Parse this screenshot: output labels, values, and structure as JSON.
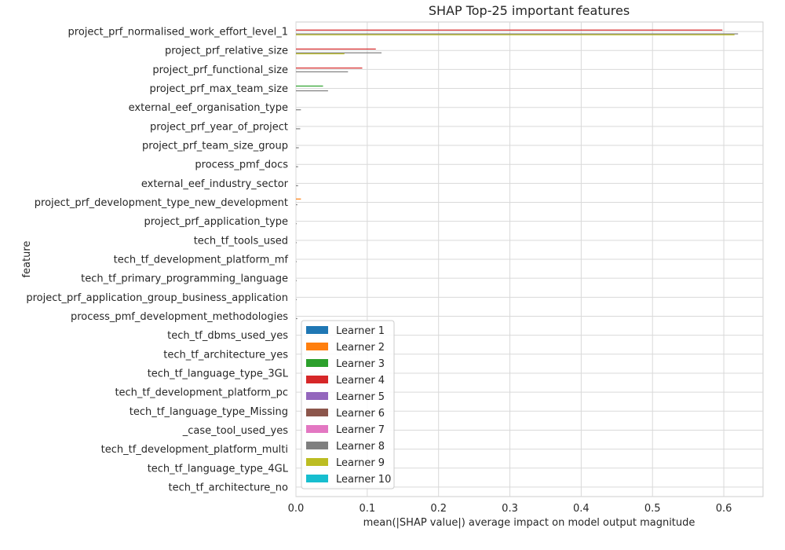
{
  "chart_data": {
    "type": "bar",
    "orientation": "horizontal",
    "title": "SHAP Top-25 important features",
    "xlabel": "mean(|SHAP value|) average impact on model output magnitude",
    "ylabel": "feature",
    "xlim": [
      0,
      0.655
    ],
    "xticks": [
      "0.0",
      "0.1",
      "0.2",
      "0.3",
      "0.4",
      "0.5",
      "0.6"
    ],
    "grid": true,
    "legend_position": "lower-left",
    "categories": [
      "project_prf_normalised_work_effort_level_1",
      "project_prf_relative_size",
      "project_prf_functional_size",
      "project_prf_max_team_size",
      "external_eef_organisation_type",
      "project_prf_year_of_project",
      "project_prf_team_size_group",
      "process_pmf_docs",
      "external_eef_industry_sector",
      "project_prf_development_type_new_development",
      "project_prf_application_type",
      "tech_tf_tools_used",
      "tech_tf_development_platform_mf",
      "tech_tf_primary_programming_language",
      "project_prf_application_group_business_application",
      "process_pmf_development_methodologies",
      "tech_tf_dbms_used_yes",
      "tech_tf_architecture_yes",
      "tech_tf_language_type_3GL",
      "tech_tf_development_platform_pc",
      "tech_tf_language_type_Missing",
      "_case_tool_used_yes",
      "tech_tf_development_platform_multi",
      "tech_tf_language_type_4GL",
      "tech_tf_architecture_no"
    ],
    "series": [
      {
        "name": "Learner 1",
        "color": "#1f77b4",
        "values": [
          0,
          0,
          0,
          0,
          0,
          0,
          0,
          0,
          0,
          0,
          0,
          0,
          0,
          0,
          0,
          0,
          0,
          0,
          0,
          0,
          0,
          0,
          0,
          0,
          0
        ]
      },
      {
        "name": "Learner 2",
        "color": "#ff7f0e",
        "values": [
          0,
          0,
          0,
          0,
          0,
          0,
          0,
          0,
          0,
          0.007,
          0,
          0,
          0,
          0,
          0,
          0,
          0,
          0,
          0,
          0,
          0,
          0,
          0,
          0,
          0
        ]
      },
      {
        "name": "Learner 3",
        "color": "#2ca02c",
        "values": [
          0,
          0,
          0,
          0.038,
          0,
          0,
          0,
          0,
          0,
          0,
          0,
          0,
          0,
          0,
          0,
          0,
          0,
          0,
          0,
          0,
          0,
          0,
          0,
          0,
          0
        ]
      },
      {
        "name": "Learner 4",
        "color": "#d62728",
        "values": [
          0.598,
          0.112,
          0.093,
          0,
          0,
          0,
          0,
          0,
          0,
          0,
          0,
          0,
          0,
          0,
          0,
          0,
          0,
          0,
          0,
          0,
          0,
          0,
          0,
          0,
          0
        ]
      },
      {
        "name": "Learner 5",
        "color": "#9467bd",
        "values": [
          0,
          0,
          0,
          0,
          0,
          0,
          0,
          0,
          0,
          0,
          0,
          0,
          0,
          0,
          0,
          0,
          0,
          0,
          0,
          0,
          0,
          0,
          0,
          0,
          0
        ]
      },
      {
        "name": "Learner 6",
        "color": "#8c564b",
        "values": [
          0,
          0,
          0,
          0,
          0,
          0,
          0,
          0,
          0,
          0,
          0,
          0,
          0,
          0,
          0,
          0,
          0,
          0,
          0,
          0,
          0,
          0,
          0,
          0,
          0
        ]
      },
      {
        "name": "Learner 7",
        "color": "#e377c2",
        "values": [
          0,
          0,
          0,
          0,
          0,
          0,
          0,
          0,
          0,
          0,
          0,
          0,
          0,
          0,
          0,
          0,
          0,
          0,
          0,
          0,
          0,
          0,
          0,
          0,
          0
        ]
      },
      {
        "name": "Learner 8",
        "color": "#7f7f7f",
        "values": [
          0.62,
          0.12,
          0.073,
          0.045,
          0.007,
          0.006,
          0.004,
          0.003,
          0.003,
          0.002,
          0.001,
          0.001,
          0.001,
          0.001,
          0.001,
          0.002,
          0,
          0,
          0,
          0,
          0,
          0,
          0,
          0,
          0
        ]
      },
      {
        "name": "Learner 9",
        "color": "#bcbd22",
        "values": [
          0.615,
          0.068,
          0,
          0,
          0,
          0,
          0,
          0,
          0,
          0,
          0,
          0,
          0,
          0,
          0,
          0,
          0,
          0,
          0,
          0,
          0,
          0,
          0,
          0,
          0
        ]
      },
      {
        "name": "Learner 10",
        "color": "#17becf",
        "values": [
          0,
          0,
          0,
          0,
          0,
          0,
          0,
          0,
          0,
          0,
          0,
          0,
          0,
          0,
          0,
          0,
          0,
          0,
          0,
          0,
          0,
          0,
          0,
          0,
          0
        ]
      }
    ]
  }
}
